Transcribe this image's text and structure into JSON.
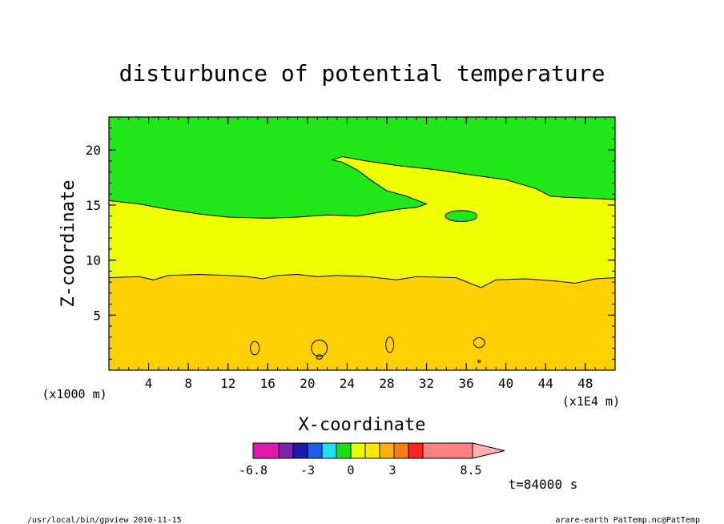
{
  "chart_data": {
    "type": "heatmap",
    "title": "disturbunce of potential temperature",
    "xlabel": "X-coordinate",
    "ylabel": "Z-coordinate",
    "x_unit_left": "(x1000 m)",
    "x_unit_right": "(x1E4 m)",
    "xlim": [
      0,
      51
    ],
    "ylim": [
      0,
      23
    ],
    "xticks": [
      4,
      8,
      12,
      16,
      20,
      24,
      28,
      32,
      36,
      40,
      44,
      48
    ],
    "yticks": [
      5,
      10,
      15,
      20
    ],
    "time_label": "t=84000 s",
    "colorbar": {
      "tick_labels": [
        "-6.8",
        "-3",
        "0",
        "3",
        "8.5"
      ],
      "colors": [
        "#e018b0",
        "#8020b0",
        "#1a1ab0",
        "#1e5ef0",
        "#20e0f0",
        "#18e018",
        "#eaff00",
        "#ffe800",
        "#ffb000",
        "#ff7a10",
        "#ff2020",
        "#ff8080",
        "#ffb0b0"
      ]
    },
    "regions": [
      {
        "name": "lower",
        "color": "#ffd000",
        "top_boundary": [
          [
            0,
            8.4
          ],
          [
            3,
            8.5
          ],
          [
            4.5,
            8.2
          ],
          [
            6,
            8.6
          ],
          [
            9,
            8.7
          ],
          [
            12,
            8.6
          ],
          [
            14,
            8.5
          ],
          [
            15.5,
            8.3
          ],
          [
            17,
            8.6
          ],
          [
            19,
            8.7
          ],
          [
            21,
            8.5
          ],
          [
            23,
            8.6
          ],
          [
            26,
            8.5
          ],
          [
            29,
            8.2
          ],
          [
            31,
            8.5
          ],
          [
            35,
            8.4
          ],
          [
            37.5,
            7.5
          ],
          [
            39,
            8.2
          ],
          [
            42,
            8.3
          ],
          [
            45,
            8.1
          ],
          [
            47,
            7.9
          ],
          [
            49,
            8.3
          ],
          [
            51,
            8.4
          ]
        ]
      },
      {
        "name": "middle",
        "color": "#f0ff00",
        "top_boundary": [
          [
            0,
            15.4
          ],
          [
            3,
            15.1
          ],
          [
            6,
            14.6
          ],
          [
            9,
            14.2
          ],
          [
            12,
            13.9
          ],
          [
            16,
            13.8
          ],
          [
            19,
            13.9
          ],
          [
            22,
            14.1
          ],
          [
            25,
            14.0
          ],
          [
            27,
            14.3
          ],
          [
            29,
            14.6
          ],
          [
            31,
            14.8
          ],
          [
            32,
            15.1
          ],
          [
            30,
            15.8
          ],
          [
            28,
            16.3
          ],
          [
            26.5,
            17.2
          ],
          [
            25,
            18.2
          ],
          [
            23.5,
            18.9
          ],
          [
            22.5,
            19.1
          ],
          [
            23.5,
            19.4
          ],
          [
            26,
            19.0
          ],
          [
            29,
            18.6
          ],
          [
            33,
            18.2
          ],
          [
            36,
            17.8
          ],
          [
            40,
            17.3
          ],
          [
            43,
            16.5
          ],
          [
            44.5,
            15.8
          ],
          [
            46,
            15.7
          ],
          [
            49,
            15.6
          ],
          [
            51,
            15.5
          ]
        ]
      },
      {
        "name": "upper",
        "color": "#20e818"
      }
    ],
    "contours": [
      {
        "level": "positive",
        "center": [
          35.5,
          14.0
        ],
        "radius": [
          1.6,
          0.5
        ],
        "fill": "#20e818"
      },
      {
        "level": "positive",
        "center": [
          14.7,
          2.0
        ],
        "radius": [
          0.45,
          0.6
        ]
      },
      {
        "level": "positive",
        "center": [
          21.2,
          2.0
        ],
        "radius": [
          0.8,
          0.75
        ]
      },
      {
        "level": "positive",
        "center": [
          28.3,
          2.3
        ],
        "radius": [
          0.4,
          0.7
        ]
      },
      {
        "level": "positive",
        "center": [
          37.3,
          2.5
        ],
        "radius": [
          0.55,
          0.45
        ]
      },
      {
        "level": "positive",
        "center": [
          21.2,
          1.2
        ],
        "radius": [
          0.3,
          0.2
        ]
      },
      {
        "level": "positive",
        "center": [
          37.3,
          0.8
        ],
        "radius": [
          0.12,
          0.1
        ]
      }
    ]
  },
  "footer": {
    "left": "/usr/local/bin/gpview  2010-11-15",
    "right": "arare-earth_PatTemp.nc@PatTemp"
  }
}
